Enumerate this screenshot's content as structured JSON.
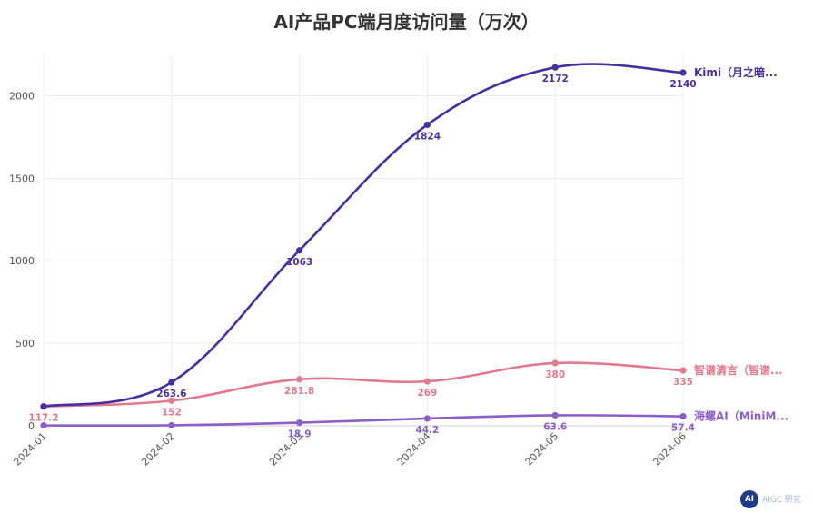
{
  "chart_data": {
    "type": "line",
    "title": "AI产品PC端月度访问量（万次）",
    "categories": [
      "2024-01",
      "2024-02",
      "2024-03",
      "2024-04",
      "2024-05",
      "2024-06"
    ],
    "ylim": [
      0,
      2250
    ],
    "yticks": [
      "0",
      "500",
      "1000",
      "1500",
      "2000"
    ],
    "grid": true,
    "series": [
      {
        "name": "Kimi（月之暗...",
        "color": "#4a2ea0",
        "values": [
          117.2,
          263.6,
          1063,
          1824,
          2172,
          2140
        ],
        "labels": [
          "",
          "263.6",
          "1063",
          "1824",
          "2172",
          "2140"
        ]
      },
      {
        "name": "智谱清言（智谱...",
        "color": "#e07a8c",
        "values": [
          117.2,
          152,
          281.8,
          269,
          380,
          335
        ],
        "labels": [
          "117.2",
          "152",
          "281.8",
          "269",
          "380",
          "335"
        ]
      },
      {
        "name": "海螺AI（MiniM...",
        "color": "#8b5ec9",
        "values": [
          2,
          3,
          18.9,
          44.2,
          63.6,
          57.4
        ],
        "labels": [
          "",
          "",
          "18.9",
          "44.2",
          "63.6",
          "57.4"
        ]
      }
    ]
  },
  "watermark": {
    "badge": "AI",
    "text": "AIGC 研究"
  }
}
